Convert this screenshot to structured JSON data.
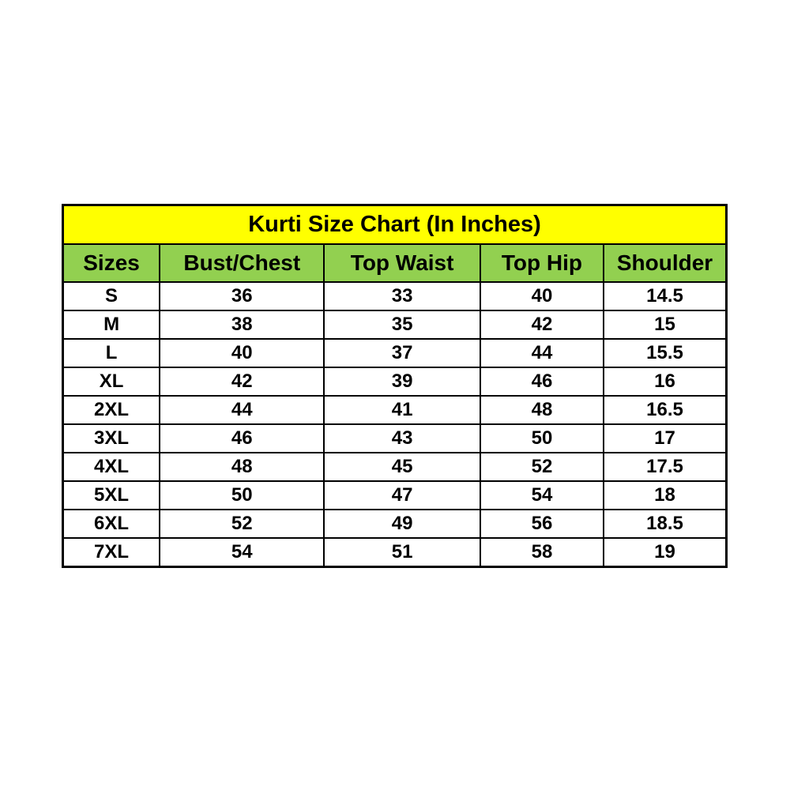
{
  "page": {
    "background_color": "#ffffff",
    "title_bg_color": "#ffff00",
    "header_bg_color": "#92d050",
    "border_color": "#000000",
    "text_color": "#000000"
  },
  "table": {
    "title": "Kurti Size Chart (In Inches)",
    "columns": [
      "Sizes",
      "Bust/Chest",
      "Top Waist",
      "Top Hip",
      "Shoulder"
    ],
    "rows": [
      {
        "size": "S",
        "bust": "36",
        "waist": "33",
        "hip": "40",
        "shoulder": "14.5"
      },
      {
        "size": "M",
        "bust": "38",
        "waist": "35",
        "hip": "42",
        "shoulder": "15"
      },
      {
        "size": "L",
        "bust": "40",
        "waist": "37",
        "hip": "44",
        "shoulder": "15.5"
      },
      {
        "size": "XL",
        "bust": "42",
        "waist": "39",
        "hip": "46",
        "shoulder": "16"
      },
      {
        "size": "2XL",
        "bust": "44",
        "waist": "41",
        "hip": "48",
        "shoulder": "16.5"
      },
      {
        "size": "3XL",
        "bust": "46",
        "waist": "43",
        "hip": "50",
        "shoulder": "17"
      },
      {
        "size": "4XL",
        "bust": "48",
        "waist": "45",
        "hip": "52",
        "shoulder": "17.5"
      },
      {
        "size": "5XL",
        "bust": "50",
        "waist": "47",
        "hip": "54",
        "shoulder": "18"
      },
      {
        "size": "6XL",
        "bust": "52",
        "waist": "49",
        "hip": "56",
        "shoulder": "18.5"
      },
      {
        "size": "7XL",
        "bust": "54",
        "waist": "51",
        "hip": "58",
        "shoulder": "19"
      }
    ]
  },
  "chart_data": {
    "type": "table",
    "title": "Kurti Size Chart (In Inches)",
    "columns": [
      "Sizes",
      "Bust/Chest",
      "Top Waist",
      "Top Hip",
      "Shoulder"
    ],
    "rows": [
      [
        "S",
        36,
        33,
        40,
        14.5
      ],
      [
        "M",
        38,
        35,
        42,
        15
      ],
      [
        "L",
        40,
        37,
        44,
        15.5
      ],
      [
        "XL",
        42,
        39,
        46,
        16
      ],
      [
        "2XL",
        44,
        41,
        48,
        16.5
      ],
      [
        "3XL",
        46,
        43,
        50,
        17
      ],
      [
        "4XL",
        48,
        45,
        52,
        17.5
      ],
      [
        "5XL",
        50,
        47,
        54,
        18
      ],
      [
        "6XL",
        52,
        49,
        56,
        18.5
      ],
      [
        "7XL",
        54,
        51,
        58,
        19
      ]
    ],
    "units": "inches",
    "layout": {
      "title_band_color": "#ffff00",
      "header_band_color": "#92d050",
      "grid": "on"
    }
  }
}
